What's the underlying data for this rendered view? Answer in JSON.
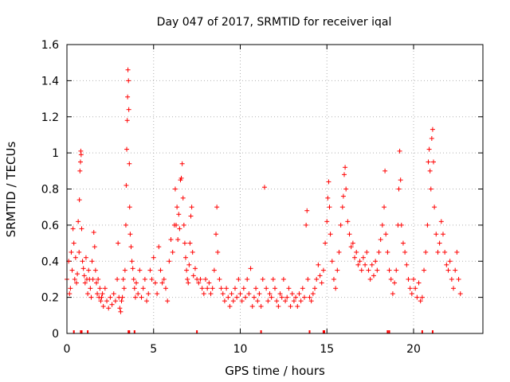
{
  "chart_data": {
    "type": "scatter",
    "title": "Day 047 of 2017, SRMTID for receiver iqal",
    "xlabel": "GPS time / hours",
    "ylabel": "SRMTID / TECUs",
    "xlim": [
      0,
      24
    ],
    "ylim": [
      0,
      1.6
    ],
    "xticks": [
      0,
      5,
      10,
      15,
      20
    ],
    "yticks": [
      0,
      0.2,
      0.4,
      0.6,
      0.8,
      1,
      1.2,
      1.4,
      1.6
    ],
    "ytick_labels": [
      "0",
      "0.2",
      "0.4",
      "0.6",
      "0.8",
      "1",
      "1.2",
      "1.4",
      "1.6"
    ],
    "grid": true,
    "marker": "+",
    "color": "#ff0000",
    "series": [
      {
        "name": "SRMTID",
        "points": [
          [
            0.0,
            0.3
          ],
          [
            0.1,
            0.4
          ],
          [
            0.15,
            0.22
          ],
          [
            0.2,
            0.25
          ],
          [
            0.25,
            0.45
          ],
          [
            0.3,
            0.35
          ],
          [
            0.35,
            0.58
          ],
          [
            0.4,
            0.5
          ],
          [
            0.45,
            0.3
          ],
          [
            0.5,
            0.42
          ],
          [
            0.55,
            0.28
          ],
          [
            0.6,
            0.33
          ],
          [
            0.65,
            0.62
          ],
          [
            0.7,
            0.45
          ],
          [
            0.72,
            0.74
          ],
          [
            0.75,
            0.9
          ],
          [
            0.78,
            0.95
          ],
          [
            0.8,
            1.01
          ],
          [
            0.82,
            0.99
          ],
          [
            0.85,
            0.58
          ],
          [
            0.9,
            0.4
          ],
          [
            0.95,
            0.36
          ],
          [
            1.0,
            0.32
          ],
          [
            1.05,
            0.28
          ],
          [
            1.1,
            0.42
          ],
          [
            1.15,
            0.3
          ],
          [
            1.2,
            0.22
          ],
          [
            1.25,
            0.35
          ],
          [
            1.3,
            0.3
          ],
          [
            1.35,
            0.25
          ],
          [
            1.4,
            0.2
          ],
          [
            1.45,
            0.4
          ],
          [
            1.5,
            0.3
          ],
          [
            1.55,
            0.56
          ],
          [
            1.6,
            0.48
          ],
          [
            1.65,
            0.35
          ],
          [
            1.7,
            0.28
          ],
          [
            1.75,
            0.22
          ],
          [
            1.8,
            0.3
          ],
          [
            1.85,
            0.2
          ],
          [
            1.9,
            0.25
          ],
          [
            1.95,
            0.18
          ],
          [
            2.0,
            0.2
          ],
          [
            2.05,
            0.22
          ],
          [
            2.1,
            0.15
          ],
          [
            2.2,
            0.25
          ],
          [
            2.3,
            0.18
          ],
          [
            2.4,
            0.14
          ],
          [
            2.5,
            0.2
          ],
          [
            2.6,
            0.16
          ],
          [
            2.7,
            0.22
          ],
          [
            2.8,
            0.18
          ],
          [
            2.9,
            0.3
          ],
          [
            2.95,
            0.5
          ],
          [
            3.0,
            0.2
          ],
          [
            3.05,
            0.14
          ],
          [
            3.1,
            0.12
          ],
          [
            3.15,
            0.18
          ],
          [
            3.2,
            0.2
          ],
          [
            3.25,
            0.3
          ],
          [
            3.3,
            0.25
          ],
          [
            3.35,
            0.35
          ],
          [
            3.4,
            0.6
          ],
          [
            3.42,
            0.82
          ],
          [
            3.45,
            1.02
          ],
          [
            3.48,
            1.18
          ],
          [
            3.5,
            1.31
          ],
          [
            3.52,
            1.46
          ],
          [
            3.55,
            1.4
          ],
          [
            3.57,
            1.24
          ],
          [
            3.6,
            0.94
          ],
          [
            3.62,
            0.7
          ],
          [
            3.65,
            0.55
          ],
          [
            3.7,
            0.48
          ],
          [
            3.75,
            0.4
          ],
          [
            3.8,
            0.36
          ],
          [
            3.85,
            0.3
          ],
          [
            3.9,
            0.25
          ],
          [
            3.95,
            0.2
          ],
          [
            4.0,
            0.28
          ],
          [
            4.1,
            0.22
          ],
          [
            4.2,
            0.35
          ],
          [
            4.3,
            0.2
          ],
          [
            4.4,
            0.25
          ],
          [
            4.5,
            0.3
          ],
          [
            4.6,
            0.18
          ],
          [
            4.7,
            0.22
          ],
          [
            4.8,
            0.35
          ],
          [
            4.9,
            0.3
          ],
          [
            5.0,
            0.42
          ],
          [
            5.1,
            0.28
          ],
          [
            5.2,
            0.22
          ],
          [
            5.3,
            0.48
          ],
          [
            5.4,
            0.35
          ],
          [
            5.5,
            0.28
          ],
          [
            5.6,
            0.3
          ],
          [
            5.7,
            0.25
          ],
          [
            5.8,
            0.18
          ],
          [
            5.9,
            0.4
          ],
          [
            6.0,
            0.52
          ],
          [
            6.1,
            0.45
          ],
          [
            6.2,
            0.6
          ],
          [
            6.25,
            0.8
          ],
          [
            6.3,
            0.6
          ],
          [
            6.35,
            0.7
          ],
          [
            6.4,
            0.52
          ],
          [
            6.45,
            0.66
          ],
          [
            6.5,
            0.58
          ],
          [
            6.55,
            0.85
          ],
          [
            6.6,
            0.86
          ],
          [
            6.65,
            0.94
          ],
          [
            6.7,
            0.75
          ],
          [
            6.75,
            0.6
          ],
          [
            6.8,
            0.5
          ],
          [
            6.85,
            0.42
          ],
          [
            6.9,
            0.35
          ],
          [
            6.95,
            0.3
          ],
          [
            7.0,
            0.28
          ],
          [
            7.05,
            0.38
          ],
          [
            7.1,
            0.5
          ],
          [
            7.15,
            0.65
          ],
          [
            7.2,
            0.7
          ],
          [
            7.25,
            0.45
          ],
          [
            7.3,
            0.32
          ],
          [
            7.4,
            0.36
          ],
          [
            7.5,
            0.3
          ],
          [
            7.6,
            0.28
          ],
          [
            7.7,
            0.3
          ],
          [
            7.8,
            0.25
          ],
          [
            7.9,
            0.22
          ],
          [
            8.0,
            0.3
          ],
          [
            8.1,
            0.25
          ],
          [
            8.2,
            0.28
          ],
          [
            8.3,
            0.22
          ],
          [
            8.4,
            0.25
          ],
          [
            8.5,
            0.35
          ],
          [
            8.6,
            0.55
          ],
          [
            8.65,
            0.7
          ],
          [
            8.7,
            0.45
          ],
          [
            8.8,
            0.3
          ],
          [
            8.9,
            0.25
          ],
          [
            9.0,
            0.22
          ],
          [
            9.1,
            0.18
          ],
          [
            9.2,
            0.25
          ],
          [
            9.3,
            0.2
          ],
          [
            9.4,
            0.15
          ],
          [
            9.5,
            0.22
          ],
          [
            9.6,
            0.18
          ],
          [
            9.7,
            0.25
          ],
          [
            9.8,
            0.2
          ],
          [
            9.9,
            0.3
          ],
          [
            10.0,
            0.22
          ],
          [
            10.1,
            0.18
          ],
          [
            10.2,
            0.25
          ],
          [
            10.3,
            0.2
          ],
          [
            10.4,
            0.3
          ],
          [
            10.5,
            0.22
          ],
          [
            10.6,
            0.36
          ],
          [
            10.7,
            0.15
          ],
          [
            10.8,
            0.2
          ],
          [
            10.9,
            0.25
          ],
          [
            11.0,
            0.18
          ],
          [
            11.1,
            0.22
          ],
          [
            11.2,
            0.15
          ],
          [
            11.3,
            0.3
          ],
          [
            11.4,
            0.81
          ],
          [
            11.5,
            0.25
          ],
          [
            11.6,
            0.18
          ],
          [
            11.7,
            0.22
          ],
          [
            11.8,
            0.2
          ],
          [
            11.9,
            0.3
          ],
          [
            12.0,
            0.25
          ],
          [
            12.1,
            0.18
          ],
          [
            12.2,
            0.15
          ],
          [
            12.3,
            0.22
          ],
          [
            12.4,
            0.2
          ],
          [
            12.5,
            0.3
          ],
          [
            12.6,
            0.18
          ],
          [
            12.7,
            0.2
          ],
          [
            12.8,
            0.25
          ],
          [
            12.9,
            0.15
          ],
          [
            13.0,
            0.22
          ],
          [
            13.1,
            0.18
          ],
          [
            13.2,
            0.2
          ],
          [
            13.3,
            0.15
          ],
          [
            13.4,
            0.22
          ],
          [
            13.5,
            0.18
          ],
          [
            13.6,
            0.25
          ],
          [
            13.7,
            0.2
          ],
          [
            13.8,
            0.6
          ],
          [
            13.85,
            0.68
          ],
          [
            13.9,
            0.3
          ],
          [
            14.0,
            0.2
          ],
          [
            14.1,
            0.18
          ],
          [
            14.2,
            0.22
          ],
          [
            14.3,
            0.25
          ],
          [
            14.4,
            0.3
          ],
          [
            14.5,
            0.38
          ],
          [
            14.6,
            0.32
          ],
          [
            14.7,
            0.28
          ],
          [
            14.8,
            0.35
          ],
          [
            14.9,
            0.5
          ],
          [
            15.0,
            0.62
          ],
          [
            15.05,
            0.75
          ],
          [
            15.1,
            0.84
          ],
          [
            15.15,
            0.7
          ],
          [
            15.2,
            0.55
          ],
          [
            15.3,
            0.4
          ],
          [
            15.4,
            0.3
          ],
          [
            15.5,
            0.25
          ],
          [
            15.6,
            0.35
          ],
          [
            15.7,
            0.45
          ],
          [
            15.8,
            0.6
          ],
          [
            15.9,
            0.7
          ],
          [
            15.95,
            0.76
          ],
          [
            16.0,
            0.88
          ],
          [
            16.05,
            0.92
          ],
          [
            16.1,
            0.8
          ],
          [
            16.2,
            0.62
          ],
          [
            16.3,
            0.55
          ],
          [
            16.4,
            0.48
          ],
          [
            16.5,
            0.5
          ],
          [
            16.6,
            0.42
          ],
          [
            16.7,
            0.45
          ],
          [
            16.8,
            0.38
          ],
          [
            16.9,
            0.4
          ],
          [
            17.0,
            0.35
          ],
          [
            17.1,
            0.42
          ],
          [
            17.2,
            0.38
          ],
          [
            17.3,
            0.45
          ],
          [
            17.4,
            0.35
          ],
          [
            17.5,
            0.3
          ],
          [
            17.6,
            0.38
          ],
          [
            17.7,
            0.32
          ],
          [
            17.8,
            0.4
          ],
          [
            17.9,
            0.35
          ],
          [
            18.0,
            0.45
          ],
          [
            18.1,
            0.52
          ],
          [
            18.2,
            0.6
          ],
          [
            18.3,
            0.7
          ],
          [
            18.35,
            0.9
          ],
          [
            18.4,
            0.55
          ],
          [
            18.5,
            0.45
          ],
          [
            18.6,
            0.35
          ],
          [
            18.7,
            0.3
          ],
          [
            18.8,
            0.22
          ],
          [
            18.9,
            0.28
          ],
          [
            19.0,
            0.35
          ],
          [
            19.1,
            0.6
          ],
          [
            19.15,
            0.8
          ],
          [
            19.2,
            1.01
          ],
          [
            19.25,
            0.85
          ],
          [
            19.3,
            0.6
          ],
          [
            19.4,
            0.5
          ],
          [
            19.5,
            0.45
          ],
          [
            19.6,
            0.38
          ],
          [
            19.7,
            0.3
          ],
          [
            19.8,
            0.25
          ],
          [
            19.9,
            0.22
          ],
          [
            20.0,
            0.3
          ],
          [
            20.1,
            0.25
          ],
          [
            20.2,
            0.2
          ],
          [
            20.3,
            0.28
          ],
          [
            20.4,
            0.18
          ],
          [
            20.5,
            0.2
          ],
          [
            20.6,
            0.35
          ],
          [
            20.7,
            0.45
          ],
          [
            20.8,
            0.6
          ],
          [
            20.85,
            0.95
          ],
          [
            20.9,
            1.02
          ],
          [
            20.95,
            0.9
          ],
          [
            21.0,
            0.8
          ],
          [
            21.05,
            1.08
          ],
          [
            21.1,
            1.13
          ],
          [
            21.15,
            0.95
          ],
          [
            21.2,
            0.7
          ],
          [
            21.3,
            0.55
          ],
          [
            21.4,
            0.45
          ],
          [
            21.5,
            0.5
          ],
          [
            21.6,
            0.62
          ],
          [
            21.7,
            0.55
          ],
          [
            21.8,
            0.45
          ],
          [
            21.9,
            0.38
          ],
          [
            22.0,
            0.35
          ],
          [
            22.1,
            0.4
          ],
          [
            22.2,
            0.3
          ],
          [
            22.3,
            0.25
          ],
          [
            22.4,
            0.35
          ],
          [
            22.5,
            0.45
          ],
          [
            22.6,
            0.3
          ],
          [
            22.7,
            0.22
          ]
        ]
      }
    ],
    "rug_x": [
      0.4,
      0.8,
      0.85,
      1.2,
      3.55,
      3.6,
      3.9,
      7.5,
      11.2,
      14.0,
      14.8,
      14.85,
      18.5,
      18.6,
      20.5,
      21.1
    ]
  }
}
